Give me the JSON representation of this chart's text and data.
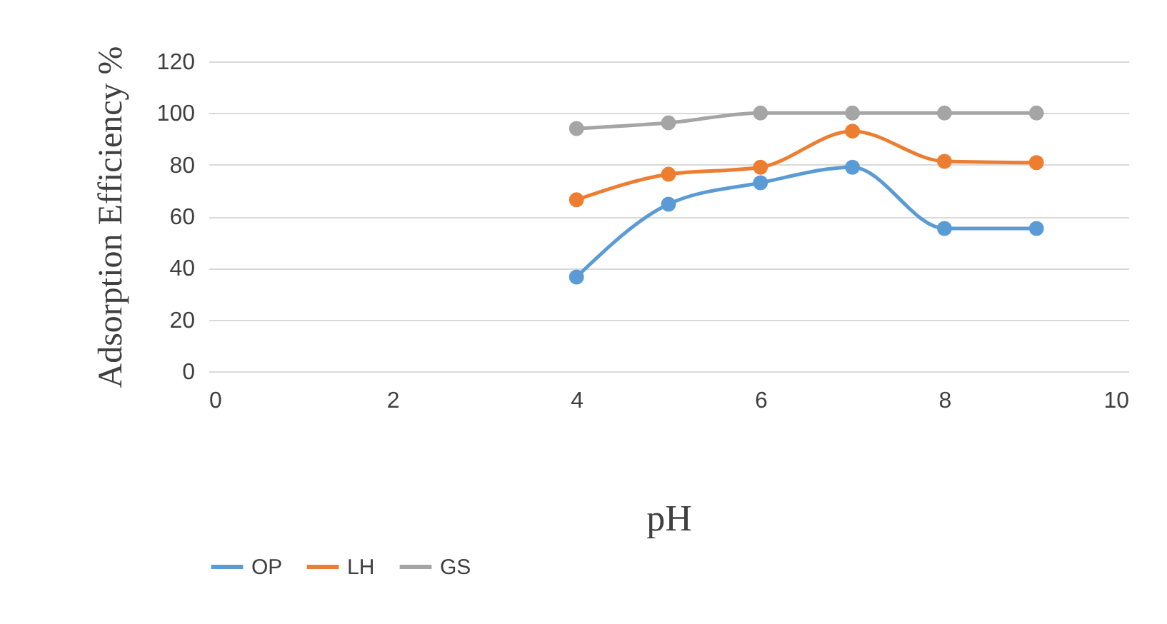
{
  "chart_data": {
    "type": "line",
    "xlabel": "pH",
    "ylabel": "Adsorption Efficiency %",
    "x": [
      4,
      5,
      6,
      7,
      8,
      9
    ],
    "series": [
      {
        "name": "OP",
        "color": "#5b9bd5",
        "values": [
          36.5,
          64.7,
          73,
          79,
          55.3,
          55.3
        ]
      },
      {
        "name": "LH",
        "color": "#ed7d31",
        "values": [
          66.4,
          76.3,
          79,
          93,
          81.3,
          80.8
        ]
      },
      {
        "name": "GS",
        "color": "#a5a5a5",
        "values": [
          94,
          96.2,
          100,
          100,
          100,
          100
        ]
      }
    ],
    "xlim": [
      0,
      10
    ],
    "xticks": [
      0,
      2,
      4,
      6,
      8,
      10
    ],
    "ylim": [
      0,
      120
    ],
    "yticks": [
      0,
      20,
      40,
      60,
      80,
      100,
      120
    ],
    "grid": "y",
    "legend": "bottom",
    "marker": "circle",
    "line_style": "solid"
  }
}
